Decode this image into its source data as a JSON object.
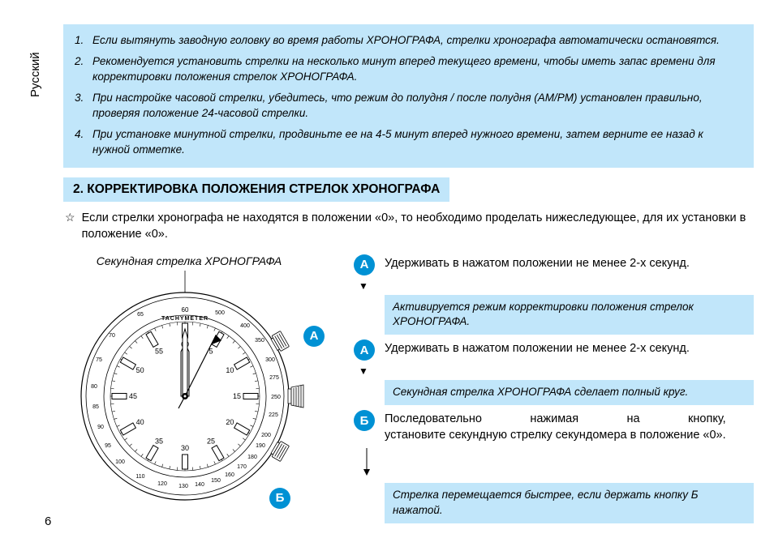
{
  "side_label": "Русский",
  "page_number": "6",
  "notes": [
    {
      "num": "1.",
      "text": "Если вытянуть заводную головку во время работы ХРОНОГРАФА, стрелки хронографа автоматически остановятся."
    },
    {
      "num": "2.",
      "text": "Рекомендуется установить стрелки на несколько минут вперед текущего времени, чтобы иметь запас времени для корректировки положения стрелок ХРОНОГРАФА."
    },
    {
      "num": "3.",
      "text": "При настройке часовой стрелки, убедитесь, что режим до полудня / после полудня (AM/PM) установлен правильно, проверяя положение 24-часовой стрелки."
    },
    {
      "num": "4.",
      "text": "При установке минутной стрелки, продвиньте ее на 4-5 минут вперед нужного времени, затем верните ее назад к нужной отметке."
    }
  ],
  "section_title": "2. КОРРЕКТИРОВКА ПОЛОЖЕНИЯ СТРЕЛОК ХРОНОГРАФА",
  "intro_text": "Если стрелки хронографа не находятся в положении «0», то необходимо проделать нижеследующее, для их установки в положение «0».",
  "star": "☆",
  "watch_label": "Секундная стрелка ХРОНОГРАФА",
  "badge_a": "А",
  "badge_b": "Б",
  "step_a1": "Удерживать в нажатом положении не менее 2-х секунд.",
  "result_a1": "Активируется режим корректировки положения стрелок ХРОНОГРАФА.",
  "step_a2": "Удерживать в нажатом положении не менее 2-х секунд.",
  "result_a2": "Секундная стрелка ХРОНОГРАФА сделает полный круг.",
  "step_b_line1": "Последовательно нажимая на кнопку,",
  "step_b_line2": "установите секундную стрелку секундомера в положение «0».",
  "result_b": "Стрелка перемещается быстрее, если держать кнопку Б нажатой.",
  "colors": {
    "box_bg": "#c1e6fa",
    "badge_bg": "#0091d4",
    "text": "#000000",
    "page_bg": "#ffffff"
  },
  "watch": {
    "tachy_label": "TACHYMETER",
    "tachy_60": "60",
    "outer_numbers": [
      "500",
      "400",
      "350",
      "300",
      "275",
      "250",
      "225",
      "200",
      "190",
      "180",
      "170",
      "160",
      "150",
      "140",
      "130",
      "120",
      "110",
      "100",
      "95",
      "90",
      "85",
      "80",
      "75",
      "70",
      "65"
    ],
    "dial_numbers": [
      "60",
      "5",
      "10",
      "15",
      "20",
      "25",
      "30",
      "35",
      "40",
      "45",
      "50",
      "55"
    ]
  }
}
